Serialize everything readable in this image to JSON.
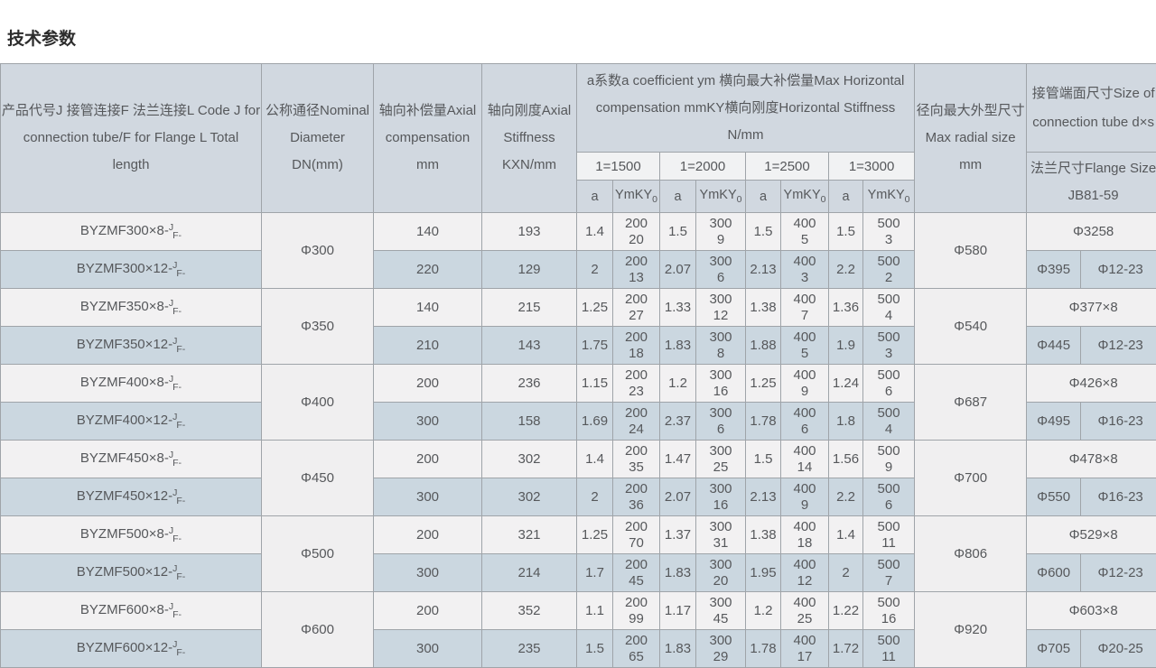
{
  "page_title": "技术参数",
  "table": {
    "headers": {
      "product_lines": [
        "产品代号J 接管连接F 法兰连接L Code J for",
        "connection tube/F for Flange L Total",
        "length"
      ],
      "diameter_lines": [
        "公称通径Nominal",
        "Diameter",
        "DN(mm)"
      ],
      "axial_comp_lines": [
        "轴向补偿量Axial",
        "compensation",
        "mm"
      ],
      "axial_stiff_lines": [
        "轴向刚度Axial",
        "Stiffness",
        "KXN/mm"
      ],
      "horizontal_lines": [
        "a系数a coefficient ym 横向最大补偿量Max Horizontal",
        "compensation mmKY横向刚度Horizontal Stiffness",
        "N/mm"
      ],
      "radial_lines": [
        "径向最大外型尺寸",
        "Max radial size",
        "mm"
      ],
      "tube_lines": [
        "接管端面尺寸Size of",
        "connection tube d×s"
      ],
      "flange_lines": [
        "法兰尺寸Flange Size",
        "JB81-59"
      ],
      "lengths": [
        "1=1500",
        "1=2000",
        "1=2500",
        "1=3000"
      ],
      "sub_a": "a",
      "sub_ymky": "YmKY",
      "sub_ymky_sub": "0"
    },
    "colors": {
      "header_bg": "#d1d8e0",
      "subheader_bg": "#f1f2f3",
      "row_light_bg": "#f2f1f2",
      "row_blue_bg": "#cbd7e0",
      "border": "#9fa4a9",
      "text": "#56585b"
    },
    "groups": [
      {
        "diameter": "Φ300",
        "radial": "Φ580",
        "tube": "Φ3258",
        "flange": [
          "Φ395",
          "Φ12-23"
        ],
        "rows": [
          {
            "code": "BYZMF300×8-",
            "sup": "J",
            "sub": "F-",
            "comp": "140",
            "stiff": "193",
            "quads": [
              [
                "1.4",
                "200",
                "20"
              ],
              [
                "1.5",
                "300",
                "9"
              ],
              [
                "1.5",
                "400",
                "5"
              ],
              [
                "1.5",
                "500",
                "3"
              ]
            ]
          },
          {
            "code": "BYZMF300×12-",
            "sup": "J",
            "sub": "F-",
            "comp": "220",
            "stiff": "129",
            "quads": [
              [
                "2",
                "200",
                "13"
              ],
              [
                "2.07",
                "300",
                "6"
              ],
              [
                "2.13",
                "400",
                "3"
              ],
              [
                "2.2",
                "500",
                "2"
              ]
            ]
          }
        ]
      },
      {
        "diameter": "Φ350",
        "radial": "Φ540",
        "tube": "Φ377×8",
        "flange": [
          "Φ445",
          "Φ12-23"
        ],
        "rows": [
          {
            "code": "BYZMF350×8-",
            "sup": "J",
            "sub": "F-",
            "comp": "140",
            "stiff": "215",
            "quads": [
              [
                "1.25",
                "200",
                "27"
              ],
              [
                "1.33",
                "300",
                "12"
              ],
              [
                "1.38",
                "400",
                "7"
              ],
              [
                "1.36",
                "500",
                "4"
              ]
            ]
          },
          {
            "code": "BYZMF350×12-",
            "sup": "J",
            "sub": "F-",
            "comp": "210",
            "stiff": "143",
            "quads": [
              [
                "1.75",
                "200",
                "18"
              ],
              [
                "1.83",
                "300",
                "8"
              ],
              [
                "1.88",
                "400",
                "5"
              ],
              [
                "1.9",
                "500",
                "3"
              ]
            ]
          }
        ]
      },
      {
        "diameter": "Φ400",
        "radial": "Φ687",
        "tube": "Φ426×8",
        "flange": [
          "Φ495",
          "Φ16-23"
        ],
        "rows": [
          {
            "code": "BYZMF400×8-",
            "sup": "J",
            "sub": "F-",
            "comp": "200",
            "stiff": "236",
            "quads": [
              [
                "1.15",
                "200",
                "23"
              ],
              [
                "1.2",
                "300",
                "16"
              ],
              [
                "1.25",
                "400",
                "9"
              ],
              [
                "1.24",
                "500",
                "6"
              ]
            ]
          },
          {
            "code": "BYZMF400×12-",
            "sup": "J",
            "sub": "F-",
            "comp": "300",
            "stiff": "158",
            "quads": [
              [
                "1.69",
                "200",
                "24"
              ],
              [
                "2.37",
                "300",
                "6"
              ],
              [
                "1.78",
                "400",
                "6"
              ],
              [
                "1.8",
                "500",
                "4"
              ]
            ]
          }
        ]
      },
      {
        "diameter": "Φ450",
        "radial": "Φ700",
        "tube": "Φ478×8",
        "flange": [
          "Φ550",
          "Φ16-23"
        ],
        "rows": [
          {
            "code": "BYZMF450×8-",
            "sup": "J",
            "sub": "F-",
            "comp": "200",
            "stiff": "302",
            "quads": [
              [
                "1.4",
                "200",
                "35"
              ],
              [
                "1.47",
                "300",
                "25"
              ],
              [
                "1.5",
                "400",
                "14"
              ],
              [
                "1.56",
                "500",
                "9"
              ]
            ]
          },
          {
            "code": "BYZMF450×12-",
            "sup": "J",
            "sub": "F-",
            "comp": "300",
            "stiff": "302",
            "quads": [
              [
                "2",
                "200",
                "36"
              ],
              [
                "2.07",
                "300",
                "16"
              ],
              [
                "2.13",
                "400",
                "9"
              ],
              [
                "2.2",
                "500",
                "6"
              ]
            ]
          }
        ]
      },
      {
        "diameter": "Φ500",
        "radial": "Φ806",
        "tube": "Φ529×8",
        "flange": [
          "Φ600",
          "Φ12-23"
        ],
        "rows": [
          {
            "code": "BYZMF500×8-",
            "sup": "J",
            "sub": "F-",
            "comp": "200",
            "stiff": "321",
            "quads": [
              [
                "1.25",
                "200",
                "70"
              ],
              [
                "1.37",
                "300",
                "31"
              ],
              [
                "1.38",
                "400",
                "18"
              ],
              [
                "1.4",
                "500",
                "11"
              ]
            ]
          },
          {
            "code": "BYZMF500×12-",
            "sup": "J",
            "sub": "F-",
            "comp": "300",
            "stiff": "214",
            "quads": [
              [
                "1.7",
                "200",
                "45"
              ],
              [
                "1.83",
                "300",
                "20"
              ],
              [
                "1.95",
                "400",
                "12"
              ],
              [
                "2",
                "500",
                "7"
              ]
            ]
          }
        ]
      },
      {
        "diameter": "Φ600",
        "radial": "Φ920",
        "tube": "Φ603×8",
        "flange": [
          "Φ705",
          "Φ20-25"
        ],
        "rows": [
          {
            "code": "BYZMF600×8-",
            "sup": "J",
            "sub": "F-",
            "comp": "200",
            "stiff": "352",
            "quads": [
              [
                "1.1",
                "200",
                "99"
              ],
              [
                "1.17",
                "300",
                "45"
              ],
              [
                "1.2",
                "400",
                "25"
              ],
              [
                "1.22",
                "500",
                "16"
              ]
            ]
          },
          {
            "code": "BYZMF600×12-",
            "sup": "J",
            "sub": "F-",
            "comp": "300",
            "stiff": "235",
            "quads": [
              [
                "1.5",
                "200",
                "65"
              ],
              [
                "1.83",
                "300",
                "29"
              ],
              [
                "1.78",
                "400",
                "17"
              ],
              [
                "1.72",
                "500",
                "11"
              ]
            ]
          }
        ]
      }
    ]
  }
}
